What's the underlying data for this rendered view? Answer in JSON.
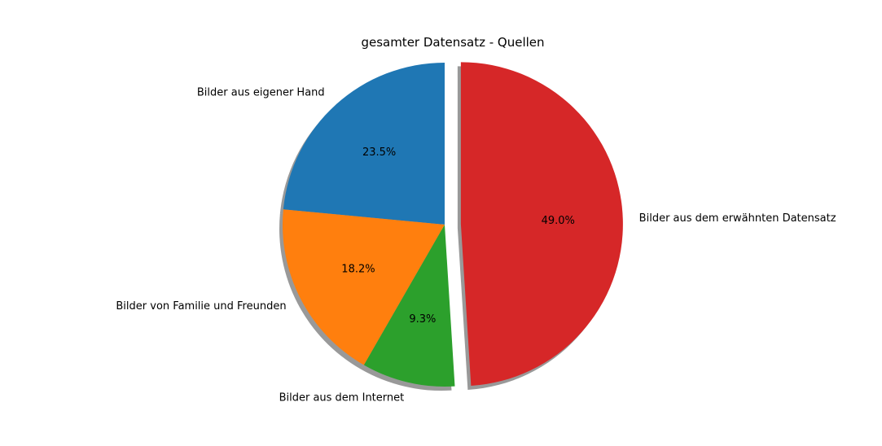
{
  "chart_data": {
    "type": "pie",
    "title": "gesamter Datensatz - Quellen",
    "start_angle_deg": 90,
    "direction": "counterclockwise",
    "shadow": true,
    "exploded": [
      "Bilder aus dem erwähnten Datensatz"
    ],
    "slices": [
      {
        "label": "Bilder aus eigener Hand",
        "value": 23.5,
        "pct_label": "23.5%",
        "color": "#1f77b4"
      },
      {
        "label": "Bilder von Familie und Freunden",
        "value": 18.2,
        "pct_label": "18.2%",
        "color": "#ff7f0e"
      },
      {
        "label": "Bilder aus dem Internet",
        "value": 9.3,
        "pct_label": "9.3%",
        "color": "#2ca02c"
      },
      {
        "label": "Bilder aus dem erwähnten Datensatz",
        "value": 49.0,
        "pct_label": "49.0%",
        "color": "#d62728"
      }
    ]
  }
}
